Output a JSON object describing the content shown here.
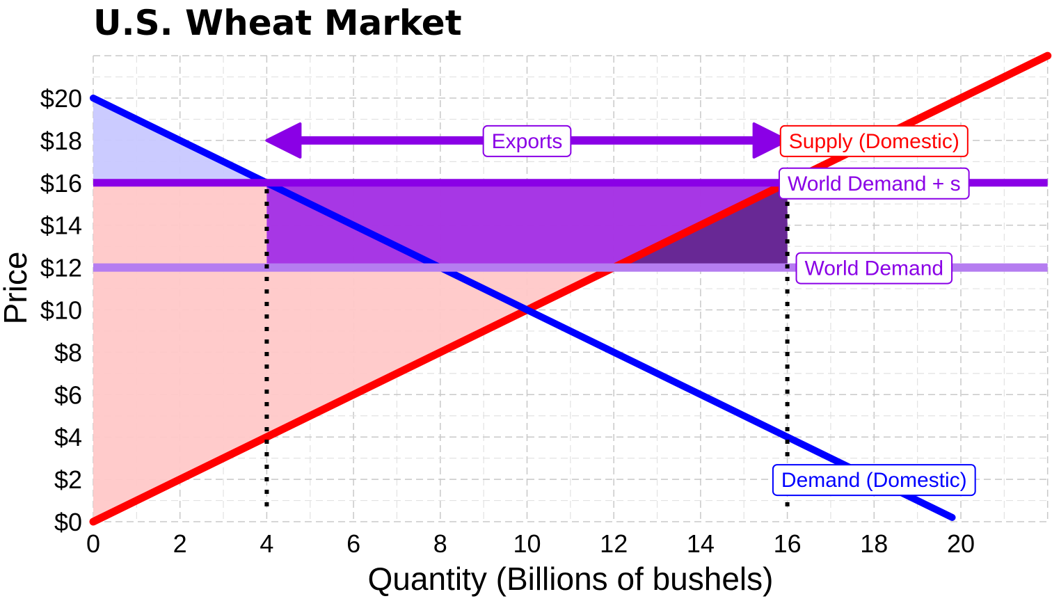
{
  "chart_data": {
    "type": "line",
    "title": "U.S. Wheat Market",
    "xlabel": "Quantity (Billions of bushels)",
    "ylabel": "Price",
    "xlim": [
      0,
      22
    ],
    "ylim": [
      0,
      22
    ],
    "x_ticks": [
      0,
      2,
      4,
      6,
      8,
      10,
      12,
      14,
      16,
      18,
      20
    ],
    "x_tick_labels": [
      "0",
      "2",
      "4",
      "6",
      "8",
      "10",
      "12",
      "14",
      "16",
      "18",
      "20"
    ],
    "y_ticks": [
      0,
      2,
      4,
      6,
      8,
      10,
      12,
      14,
      16,
      18,
      20
    ],
    "y_tick_labels": [
      "$0",
      "$2",
      "$4",
      "$6",
      "$8",
      "$10",
      "$12",
      "$14",
      "$16",
      "$18",
      "$20"
    ],
    "grid": true,
    "series": [
      {
        "name": "Supply (Domestic)",
        "color": "#ff0000",
        "points": [
          [
            0,
            0
          ],
          [
            22,
            22
          ]
        ]
      },
      {
        "name": "Demand (Domestic)",
        "color": "#0000ff",
        "points": [
          [
            0,
            20
          ],
          [
            19.8,
            0.2
          ]
        ]
      },
      {
        "name": "World Demand + s",
        "color": "#8a00e6",
        "points": [
          [
            0,
            16
          ],
          [
            22,
            16
          ]
        ]
      },
      {
        "name": "World Demand",
        "color": "#b57df0",
        "points": [
          [
            0,
            12
          ],
          [
            22,
            12
          ]
        ]
      }
    ],
    "shaded_regions": [
      {
        "name": "consumer-surplus",
        "color": "#c8c8ff",
        "points": [
          [
            0,
            20
          ],
          [
            0,
            16
          ],
          [
            4,
            16
          ]
        ]
      },
      {
        "name": "producer-surplus",
        "color": "#ffc8c8",
        "points": [
          [
            0,
            0
          ],
          [
            0,
            16
          ],
          [
            16,
            16
          ]
        ]
      },
      {
        "name": "subsidy-area",
        "color": "#a22ee6",
        "points": [
          [
            4,
            12
          ],
          [
            4,
            16
          ],
          [
            16,
            16
          ],
          [
            16,
            12
          ]
        ]
      },
      {
        "name": "deadweight-loss",
        "color": "#62278c",
        "points": [
          [
            12,
            12
          ],
          [
            16,
            16
          ],
          [
            16,
            12
          ]
        ]
      }
    ],
    "vertical_markers": [
      {
        "x": 4,
        "y": 16,
        "style": "dotted"
      },
      {
        "x": 16,
        "y": 16,
        "style": "dotted"
      }
    ],
    "exports_arrow": {
      "from_x": 4,
      "to_x": 16,
      "y": 18,
      "label": "Exports",
      "color": "#8a00e6"
    },
    "annotations": [
      {
        "text": "Supply (Domestic)",
        "x": 18,
        "y": 18,
        "color": "#ff0000"
      },
      {
        "text": "World Demand + s",
        "x": 18,
        "y": 16,
        "color": "#8a00e6"
      },
      {
        "text": "World Demand",
        "x": 18,
        "y": 12,
        "color": "#8a00e6"
      },
      {
        "text": "Demand (Domestic)",
        "x": 18,
        "y": 2,
        "color": "#0000ff"
      }
    ]
  }
}
